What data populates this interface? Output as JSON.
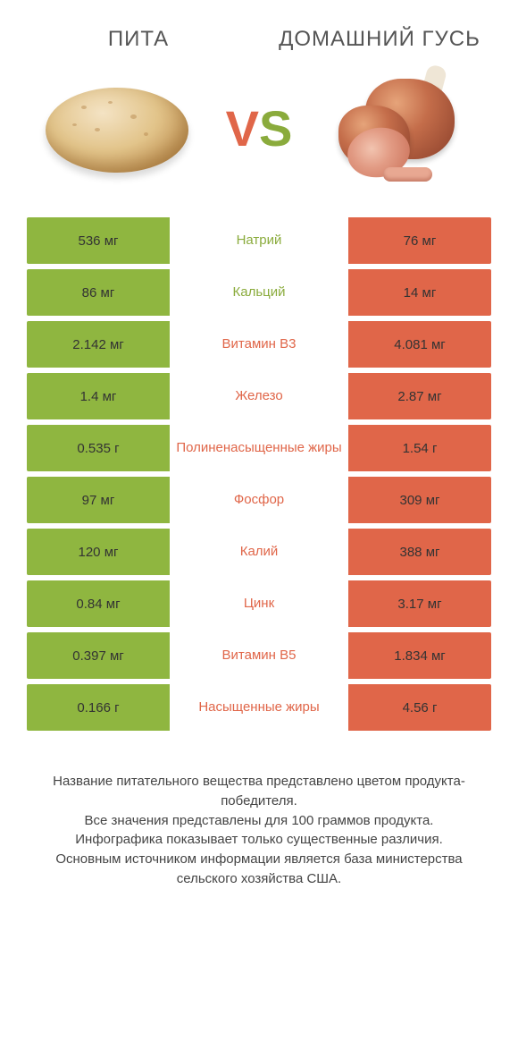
{
  "colors": {
    "green": "#8fb640",
    "green_text": "#8aab3c",
    "orange": "#e06649",
    "orange_text": "#e06649",
    "row_bg_alt": "#ffffff",
    "cell_text_dark": "#333333",
    "cell_text_light": "#ffffff"
  },
  "header": {
    "left_title": "ПИТА",
    "right_title": "ДОМАШНИЙ ГУСЬ",
    "vs_v": "V",
    "vs_s": "S"
  },
  "comparison": {
    "columns": [
      "left_value",
      "nutrient",
      "right_value"
    ],
    "rows": [
      {
        "left": "536 мг",
        "label": "Натрий",
        "right": "76 мг",
        "winner": "left"
      },
      {
        "left": "86 мг",
        "label": "Кальций",
        "right": "14 мг",
        "winner": "left"
      },
      {
        "left": "2.142 мг",
        "label": "Витамин B3",
        "right": "4.081 мг",
        "winner": "right"
      },
      {
        "left": "1.4 мг",
        "label": "Железо",
        "right": "2.87 мг",
        "winner": "right"
      },
      {
        "left": "0.535 г",
        "label": "Полиненасыщенные жиры",
        "right": "1.54 г",
        "winner": "right"
      },
      {
        "left": "97 мг",
        "label": "Фосфор",
        "right": "309 мг",
        "winner": "right"
      },
      {
        "left": "120 мг",
        "label": "Калий",
        "right": "388 мг",
        "winner": "right"
      },
      {
        "left": "0.84 мг",
        "label": "Цинк",
        "right": "3.17 мг",
        "winner": "right"
      },
      {
        "left": "0.397 мг",
        "label": "Витамин B5",
        "right": "1.834 мг",
        "winner": "right"
      },
      {
        "left": "0.166 г",
        "label": "Насыщенные жиры",
        "right": "4.56 г",
        "winner": "right"
      }
    ]
  },
  "footer": {
    "line1": "Название питательного вещества представлено цветом продукта-победителя.",
    "line2": "Все значения представлены для 100 граммов продукта.",
    "line3": "Инфографика показывает только существенные различия.",
    "line4": "Основным источником информации является база министерства сельского хозяйства США."
  }
}
